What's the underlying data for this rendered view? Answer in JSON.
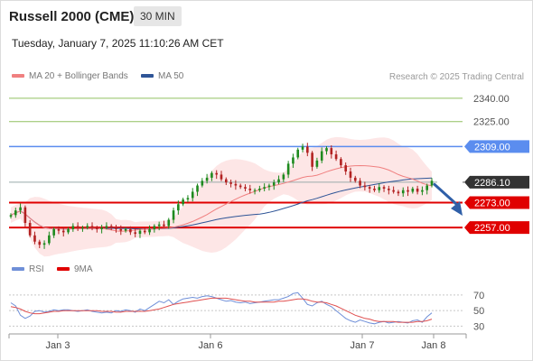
{
  "header": {
    "title": "Russell 2000 (CME)",
    "timeframe": "30 MIN",
    "datetime": "Tuesday, January 7, 2025 11:10:26 AM CET"
  },
  "legend": {
    "ma20_bb": "MA 20 + Bollinger Bands",
    "ma50": "MA 50",
    "source": "Research © 2025 Trading Central"
  },
  "rsi_legend": {
    "rsi": "RSI",
    "ma9": "9MA"
  },
  "colors": {
    "resistance": "#5b8def",
    "support": "#e00000",
    "target_line": "#90c060",
    "ma20": "#f08080",
    "ma50": "#2f5597",
    "bollinger_fill": "#fde3e3",
    "candle_up": "#1e8a1e",
    "candle_down": "#b22222",
    "arrow": "#2f5fa8",
    "rsi_line": "#6f8fd8",
    "rsi_ma": "#e05050"
  },
  "chart_data": {
    "type": "candlestick",
    "ylim": [
      2238,
      2348
    ],
    "levels": [
      {
        "label": "2340.00",
        "value": 2340,
        "style": "target"
      },
      {
        "label": "2325.00",
        "value": 2325,
        "style": "target"
      },
      {
        "label": "2309.00",
        "value": 2309,
        "style": "resistance"
      },
      {
        "label": "2286.10",
        "value": 2286.1,
        "style": "last"
      },
      {
        "label": "2273.00",
        "value": 2273,
        "style": "support"
      },
      {
        "label": "2257.00",
        "value": 2257,
        "style": "support"
      }
    ],
    "x_ticks": [
      "Jan 3",
      "Jan 6",
      "Jan 7",
      "Jan 8"
    ],
    "close": [
      2265,
      2268,
      2270,
      2260,
      2252,
      2248,
      2246,
      2247,
      2252,
      2256,
      2255,
      2254,
      2256,
      2258,
      2257,
      2257,
      2258,
      2257,
      2256,
      2257,
      2258,
      2257,
      2256,
      2255,
      2256,
      2254,
      2253,
      2255,
      2254,
      2256,
      2258,
      2259,
      2258,
      2262,
      2268,
      2272,
      2275,
      2276,
      2280,
      2284,
      2287,
      2289,
      2292,
      2291,
      2288,
      2286,
      2285,
      2284,
      2283,
      2282,
      2281,
      2281,
      2282,
      2283,
      2284,
      2286,
      2288,
      2291,
      2298,
      2302,
      2307,
      2309,
      2305,
      2296,
      2300,
      2306,
      2308,
      2304,
      2301,
      2297,
      2293,
      2289,
      2287,
      2284,
      2283,
      2282,
      2281,
      2283,
      2282,
      2281,
      2280,
      2279,
      2281,
      2280,
      2282,
      2280,
      2281,
      2284,
      2287
    ],
    "rsi": {
      "ylim": [
        20,
        85
      ],
      "ticks": [
        70,
        50,
        30
      ],
      "rsi_values": [
        60,
        56,
        44,
        40,
        43,
        49,
        50,
        48,
        49,
        51,
        50,
        51,
        51,
        50,
        49,
        50,
        51,
        49,
        48,
        47,
        48,
        47,
        50,
        49,
        51,
        50,
        48,
        52,
        50,
        54,
        58,
        62,
        60,
        64,
        58,
        62,
        65,
        66,
        67,
        66,
        68,
        69,
        68,
        66,
        64,
        62,
        63,
        61,
        60,
        61,
        59,
        60,
        61,
        62,
        63,
        64,
        64,
        66,
        68,
        72,
        73,
        66,
        58,
        56,
        60,
        62,
        58,
        55,
        50,
        45,
        40,
        37,
        35,
        38,
        36,
        34,
        33,
        35,
        36,
        34,
        35,
        36,
        35,
        34,
        37,
        38,
        35,
        42,
        47
      ],
      "ma_values": [
        55,
        54,
        52,
        49,
        47,
        46,
        46,
        47,
        48,
        49,
        49,
        50,
        50,
        50,
        50,
        50,
        50,
        50,
        50,
        49,
        49,
        49,
        48,
        48,
        49,
        49,
        49,
        49,
        49,
        50,
        51,
        52,
        54,
        56,
        58,
        59,
        60,
        61,
        62,
        63,
        64,
        65,
        66,
        66,
        66,
        66,
        65,
        64,
        63,
        62,
        62,
        61,
        61,
        61,
        61,
        61,
        62,
        62,
        63,
        64,
        65,
        65,
        64,
        62,
        61,
        61,
        60,
        58,
        56,
        53,
        50,
        47,
        44,
        42,
        40,
        39,
        37,
        36,
        36,
        36,
        36,
        35,
        35,
        35,
        35,
        36,
        36,
        37,
        39
      ]
    }
  }
}
